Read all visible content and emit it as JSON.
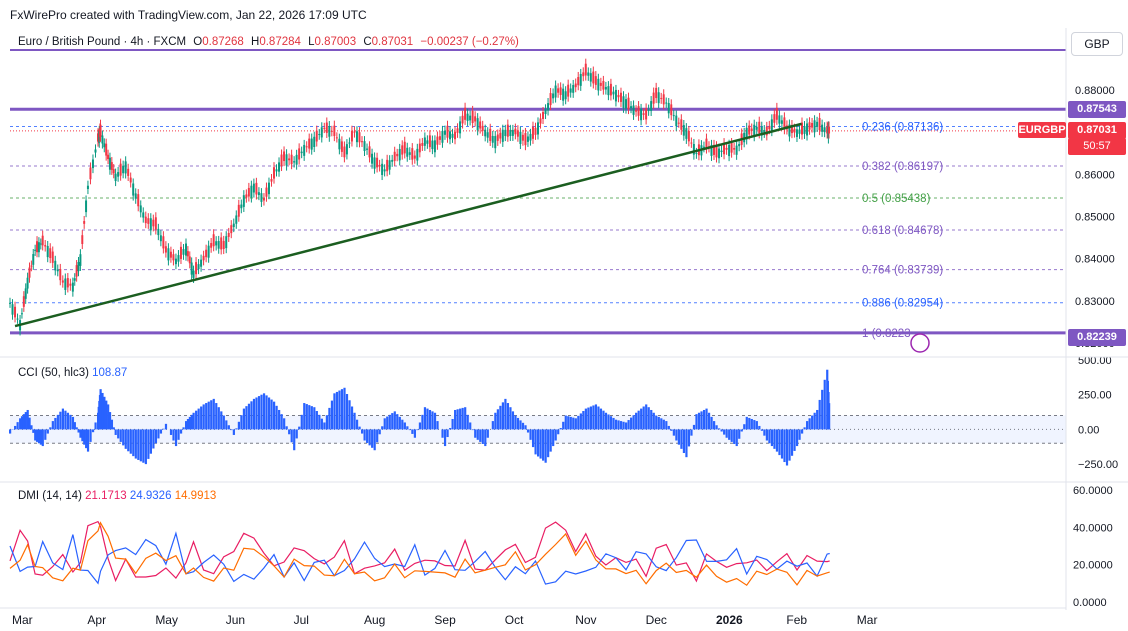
{
  "credit": "FxWirePro created with TradingView.com, Jan 22, 2026 17:09 UTC",
  "header": {
    "symbol": "Euro / British Pound · 4h · FXCM",
    "o_label": "O",
    "o": "0.87268",
    "h_label": "H",
    "h": "0.87284",
    "l_label": "L",
    "l": "0.87003",
    "c_label": "C",
    "c": "0.87031",
    "change": "−0.00237 (−0.27%)"
  },
  "currency_button": "GBP",
  "price_tags": {
    "resistance": "0.87543",
    "last": "0.87031",
    "countdown": "50:57",
    "symbol": "EURGBP",
    "support": "0.82239"
  },
  "fib_labels": [
    {
      "text": "0.236 (0.87136)",
      "color": "#2962ff"
    },
    {
      "text": "0.382 (0.86197)",
      "color": "#7e57c2"
    },
    {
      "text": "0.5 (0.85438)",
      "color": "#43a047"
    },
    {
      "text": "0.618 (0.84678)",
      "color": "#7e57c2"
    },
    {
      "text": "0.764 (0.83739)",
      "color": "#7e57c2"
    },
    {
      "text": "0.886 (0.82954)",
      "color": "#2962ff"
    },
    {
      "text": "1 (0.8223",
      "color": "#7e57c2"
    }
  ],
  "cci": {
    "label": "CCI (50, hlc3)",
    "value": "108.87",
    "ticks": [
      "500.00",
      "250.00",
      "0.00",
      "−250.00"
    ]
  },
  "dmi": {
    "label": "DMI (14, 14)",
    "plus": "21.1713",
    "minus": "24.9326",
    "adx": "14.9913",
    "ticks": [
      "60.0000",
      "40.0000",
      "20.0000",
      "0.0000"
    ]
  },
  "price_ticks": [
    "0.88000",
    "0.87000",
    "0.86000",
    "0.85000",
    "0.84000",
    "0.83000",
    "0.82000"
  ],
  "chart_data": {
    "type": "line",
    "title": "Euro / British Pound · 4h · FXCM",
    "x_ticks": [
      "Mar",
      "Apr",
      "May",
      "Jun",
      "Jul",
      "Aug",
      "Sep",
      "Oct",
      "Nov",
      "Dec",
      "2026",
      "Feb",
      "Mar"
    ],
    "ylim": [
      0.8195,
      0.8895
    ],
    "x": [
      0,
      4,
      7,
      10,
      13,
      17,
      21,
      25,
      28,
      31,
      35,
      36,
      39,
      42,
      46,
      50,
      54,
      58,
      62,
      66,
      70,
      73,
      77,
      81,
      85,
      89,
      93,
      97,
      101,
      105,
      109,
      113,
      117,
      121,
      125,
      129,
      133,
      137,
      141,
      145,
      149,
      153,
      157,
      161,
      165,
      169,
      173,
      177,
      181,
      185,
      189,
      193,
      197,
      201,
      205,
      209,
      213,
      217,
      221,
      225,
      229,
      233,
      237,
      241,
      245,
      249,
      253,
      257,
      261,
      265,
      269,
      273,
      277,
      281,
      285,
      289,
      293,
      297,
      301,
      305,
      309,
      313,
      317,
      321,
      325,
      326
    ],
    "close": [
      0.8295,
      0.8245,
      0.8345,
      0.842,
      0.844,
      0.84,
      0.8345,
      0.8335,
      0.84,
      0.857,
      0.8685,
      0.87,
      0.864,
      0.8595,
      0.862,
      0.855,
      0.849,
      0.848,
      0.842,
      0.8395,
      0.8425,
      0.8365,
      0.84,
      0.844,
      0.843,
      0.848,
      0.854,
      0.857,
      0.854,
      0.86,
      0.864,
      0.863,
      0.866,
      0.868,
      0.871,
      0.87,
      0.865,
      0.87,
      0.867,
      0.863,
      0.861,
      0.864,
      0.866,
      0.864,
      0.868,
      0.867,
      0.87,
      0.869,
      0.874,
      0.873,
      0.87,
      0.868,
      0.87,
      0.87,
      0.868,
      0.87,
      0.875,
      0.88,
      0.879,
      0.881,
      0.8845,
      0.882,
      0.8805,
      0.879,
      0.877,
      0.875,
      0.874,
      0.879,
      0.877,
      0.873,
      0.87,
      0.865,
      0.867,
      0.865,
      0.866,
      0.866,
      0.87,
      0.871,
      0.87,
      0.874,
      0.871,
      0.87,
      0.871,
      0.872,
      0.8703,
      0.8703
    ],
    "horizontal_levels": [
      {
        "name": "resistance",
        "value": 0.87543,
        "color": "#7e57c2"
      },
      {
        "name": "support",
        "value": 0.82239,
        "color": "#7e57c2"
      },
      {
        "name": "top",
        "value": 0.8895,
        "color": "#7e57c2"
      }
    ],
    "fib_levels": [
      0.87136,
      0.86197,
      0.85438,
      0.84678,
      0.83739,
      0.82954,
      0.8223
    ],
    "trendline": {
      "x": [
        2,
        285
      ],
      "y": [
        0.824,
        0.8715
      ],
      "color": "#1b5e20"
    },
    "cci_series": [
      -30,
      80,
      140,
      -80,
      -120,
      60,
      150,
      90,
      -60,
      -160,
      120,
      290,
      180,
      -40,
      -140,
      -210,
      -250,
      -100,
      40,
      -120,
      60,
      120,
      180,
      220,
      100,
      -40,
      150,
      220,
      260,
      200,
      80,
      -150,
      190,
      160,
      50,
      260,
      300,
      120,
      -80,
      -150,
      80,
      130,
      50,
      -60,
      160,
      120,
      -120,
      140,
      160,
      -60,
      -120,
      120,
      220,
      100,
      30,
      -180,
      -240,
      -80,
      100,
      80,
      150,
      180,
      120,
      70,
      50,
      120,
      180,
      100,
      60,
      -80,
      -200,
      110,
      150,
      30,
      -60,
      -120,
      90,
      60,
      -80,
      -160,
      -260,
      -120,
      60,
      140,
      430,
      109
    ],
    "dmi_plus": [
      22,
      40,
      30,
      18,
      12,
      20,
      26,
      14,
      24,
      38,
      45,
      40,
      22,
      14,
      20,
      16,
      12,
      14,
      20,
      10,
      24,
      30,
      18,
      16,
      22,
      30,
      34,
      36,
      26,
      18,
      24,
      26,
      30,
      22,
      20,
      26,
      30,
      18,
      16,
      20,
      22,
      26,
      20,
      18,
      24,
      22,
      18,
      22,
      30,
      20,
      16,
      22,
      30,
      28,
      24,
      22,
      40,
      44,
      36,
      30,
      34,
      26,
      20,
      22,
      24,
      20,
      16,
      28,
      30,
      22,
      18,
      14,
      24,
      22,
      20,
      18,
      24,
      20,
      18,
      22,
      24,
      20,
      22,
      24,
      21,
      21
    ],
    "dmi_minus": [
      30,
      18,
      16,
      22,
      30,
      22,
      18,
      34,
      20,
      14,
      12,
      16,
      24,
      30,
      26,
      28,
      32,
      30,
      22,
      34,
      18,
      14,
      22,
      26,
      18,
      14,
      12,
      14,
      18,
      24,
      16,
      18,
      14,
      20,
      22,
      16,
      14,
      26,
      30,
      24,
      20,
      18,
      22,
      28,
      16,
      18,
      26,
      20,
      14,
      24,
      26,
      18,
      14,
      16,
      18,
      20,
      10,
      12,
      14,
      18,
      14,
      20,
      26,
      22,
      20,
      24,
      28,
      18,
      16,
      26,
      30,
      36,
      20,
      22,
      24,
      26,
      18,
      22,
      24,
      18,
      20,
      22,
      18,
      16,
      25,
      25
    ],
    "dmi_adx": [
      18,
      24,
      28,
      22,
      16,
      14,
      12,
      16,
      20,
      30,
      40,
      42,
      34,
      26,
      20,
      18,
      22,
      26,
      24,
      22,
      18,
      16,
      14,
      12,
      16,
      20,
      26,
      30,
      24,
      18,
      16,
      20,
      22,
      18,
      14,
      16,
      20,
      18,
      14,
      12,
      14,
      18,
      16,
      14,
      18,
      16,
      14,
      16,
      20,
      18,
      16,
      18,
      22,
      24,
      20,
      18,
      26,
      32,
      34,
      28,
      30,
      24,
      18,
      16,
      18,
      14,
      12,
      16,
      20,
      18,
      14,
      16,
      18,
      14,
      12,
      10,
      12,
      14,
      16,
      18,
      14,
      12,
      14,
      16,
      15,
      15
    ],
    "dmi_series_colors": {
      "plus": "#e91e63",
      "minus": "#2962ff",
      "adx": "#ff6d00"
    }
  }
}
